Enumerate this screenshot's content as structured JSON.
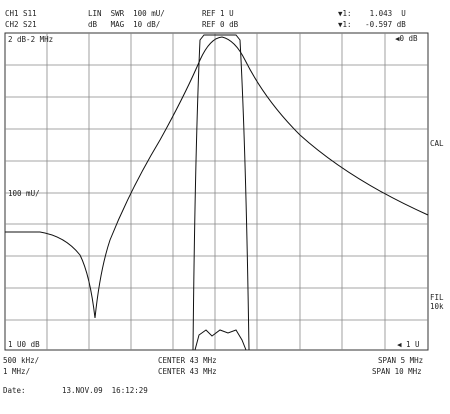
{
  "header": {
    "ch1": "CH1 S11",
    "ch2": "CH2 S21",
    "format1": "LIN  SWR  100 mU/",
    "format2": "dB   MAG  10 dB/",
    "ref1": "REF 1 U",
    "ref2": "REF 0 dB",
    "marker1": "▼1:    1.043  U",
    "marker2": "▼1:   -0.597 dB"
  },
  "screen": {
    "marker_info": "2 dB-2 MHz",
    "ref_right": "◀0 dB",
    "cal": "CAL",
    "scale_left": "100 mU/",
    "fil": "FIL\n10k",
    "bottom_left": "1 U0 dB",
    "bottom_right": "◀ 1 U"
  },
  "footer": {
    "span_div1": "500 kHz/",
    "span_div2": "1 MHz/",
    "center1": "CENTER 43 MHz",
    "center2": "CENTER 43 MHz",
    "span1": "SPAN 5 MHz",
    "span2": "SPAN 10 MHz"
  },
  "date": {
    "label": "Date:",
    "value": "13.NOV.09  16:12:29"
  }
}
